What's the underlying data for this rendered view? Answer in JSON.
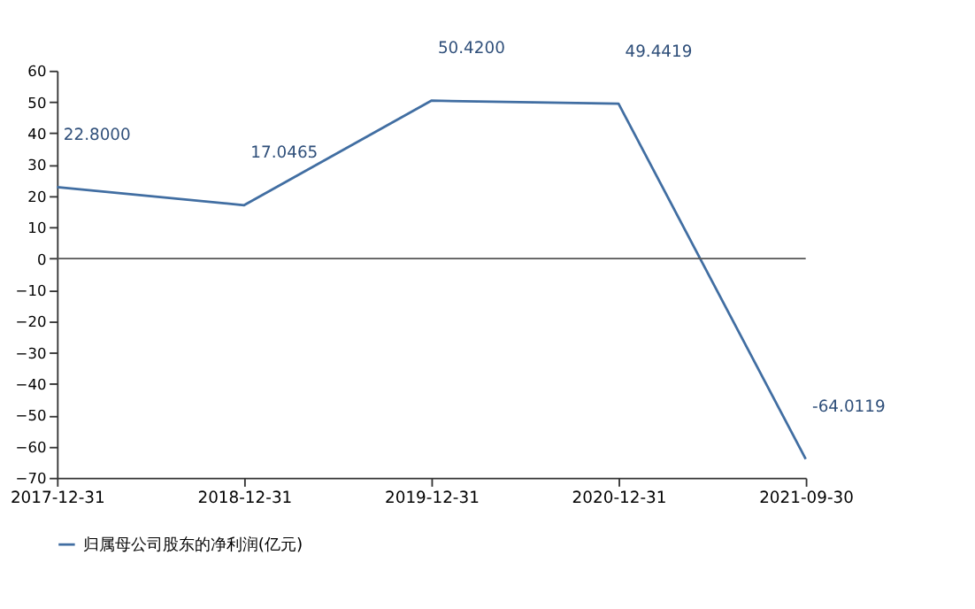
{
  "chart_data": {
    "type": "line",
    "categories": [
      "2017-12-31",
      "2018-12-31",
      "2019-12-31",
      "2020-12-31",
      "2021-09-30"
    ],
    "series": [
      {
        "name": "归属母公司股东的净利润(亿元)",
        "color": "#416ea2",
        "values": [
          22.8,
          17.0465,
          50.42,
          49.4419,
          -64.0119
        ],
        "value_labels": [
          "22.8000",
          "17.0465",
          "50.4200",
          "49.4419",
          "-64.0119"
        ]
      }
    ],
    "ylim": [
      -70,
      60
    ],
    "yticks": [
      -70,
      -60,
      -50,
      -40,
      -30,
      -20,
      -10,
      0,
      10,
      20,
      30,
      40,
      50,
      60
    ],
    "ref_lines": [
      {
        "axis": "y",
        "value": 0,
        "color": "#555555"
      }
    ],
    "grid": false,
    "legend": "bottom",
    "marker": "none",
    "line_style": "solid"
  }
}
